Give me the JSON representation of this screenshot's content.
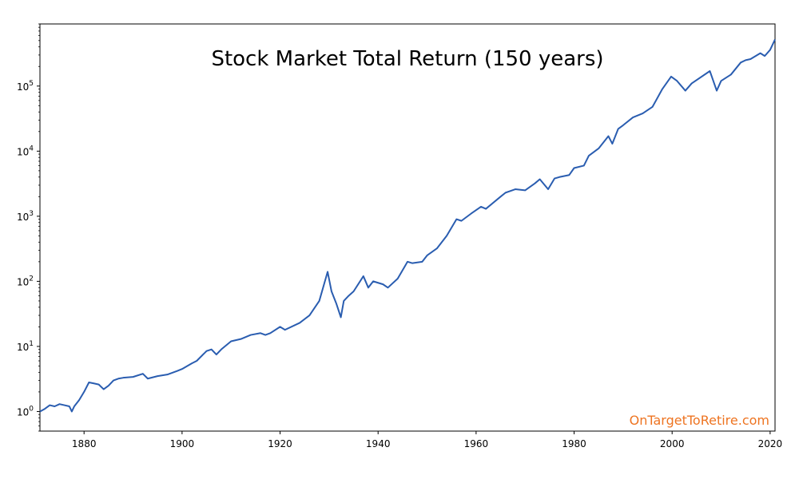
{
  "chart_data": {
    "type": "line",
    "title": "Stock Market Total Return (150 years)",
    "xlabel": "",
    "ylabel": "",
    "y_scale": "log",
    "xlim": [
      1871,
      2021
    ],
    "ylim": [
      0.5,
      900000
    ],
    "x_ticks": [
      1880,
      1900,
      1920,
      1940,
      1960,
      1980,
      2000,
      2020
    ],
    "y_ticks": [
      {
        "value": 1,
        "base": "10",
        "exp": "0"
      },
      {
        "value": 10,
        "base": "10",
        "exp": "1"
      },
      {
        "value": 100,
        "base": "10",
        "exp": "2"
      },
      {
        "value": 1000,
        "base": "10",
        "exp": "3"
      },
      {
        "value": 10000,
        "base": "10",
        "exp": "4"
      },
      {
        "value": 100000,
        "base": "10",
        "exp": "5"
      }
    ],
    "grid": false,
    "legend": "none",
    "line_color": "#2a5db0",
    "series": [
      {
        "x": [
          1871,
          1872,
          1873,
          1874,
          1875,
          1876,
          1877,
          1877.5,
          1878,
          1879,
          1880,
          1881,
          1882,
          1883,
          1884,
          1885,
          1886,
          1887,
          1888,
          1890,
          1892,
          1893,
          1895,
          1897,
          1899,
          1900,
          1902,
          1903,
          1905,
          1906,
          1907,
          1908,
          1910,
          1912,
          1914,
          1916,
          1917,
          1918,
          1920,
          1921,
          1924,
          1926,
          1928,
          1929.7,
          1930.5,
          1931.5,
          1932.4,
          1933,
          1934,
          1935,
          1937,
          1938,
          1939,
          1941,
          1942,
          1944,
          1946,
          1947,
          1949,
          1950,
          1952,
          1954,
          1956,
          1957,
          1959,
          1961,
          1962,
          1965,
          1966,
          1968,
          1970,
          1972,
          1973,
          1974.7,
          1976,
          1977,
          1979,
          1980,
          1982,
          1983,
          1985,
          1987,
          1987.8,
          1989,
          1990,
          1992,
          1994,
          1996,
          1998,
          1999.8,
          2001,
          2002.7,
          2004,
          2007.7,
          2009.1,
          2010,
          2012,
          2014,
          2015,
          2016,
          2018,
          2018.9,
          2020,
          2021
        ],
        "y": [
          1.0,
          1.1,
          1.25,
          1.2,
          1.3,
          1.25,
          1.2,
          1.0,
          1.2,
          1.5,
          2.0,
          2.8,
          2.7,
          2.6,
          2.2,
          2.5,
          3.0,
          3.2,
          3.3,
          3.4,
          3.8,
          3.2,
          3.5,
          3.7,
          4.2,
          4.5,
          5.5,
          6.0,
          8.5,
          9.0,
          7.5,
          9.0,
          12.0,
          13.0,
          15.0,
          16.0,
          15.0,
          16.0,
          20.0,
          18.0,
          23.0,
          30.0,
          50.0,
          140.0,
          70.0,
          45.0,
          28.0,
          50.0,
          60.0,
          70.0,
          120.0,
          80.0,
          100.0,
          90.0,
          80.0,
          110.0,
          200.0,
          190.0,
          200.0,
          250.0,
          320.0,
          500.0,
          900.0,
          850.0,
          1100.0,
          1400.0,
          1300.0,
          2000.0,
          2300.0,
          2600.0,
          2500.0,
          3200.0,
          3700.0,
          2600.0,
          3800.0,
          4000.0,
          4300.0,
          5500.0,
          6000.0,
          8500.0,
          11000.0,
          17000.0,
          13000.0,
          22000.0,
          25000.0,
          33000.0,
          38000.0,
          48000.0,
          90000.0,
          140000.0,
          120000.0,
          85000.0,
          110000.0,
          170000.0,
          85000.0,
          120000.0,
          150000.0,
          230000.0,
          250000.0,
          260000.0,
          320000.0,
          290000.0,
          360000.0,
          520000.0
        ]
      }
    ]
  },
  "watermark": {
    "text": "OnTargetToRetire.com",
    "color": "#ee7421"
  }
}
